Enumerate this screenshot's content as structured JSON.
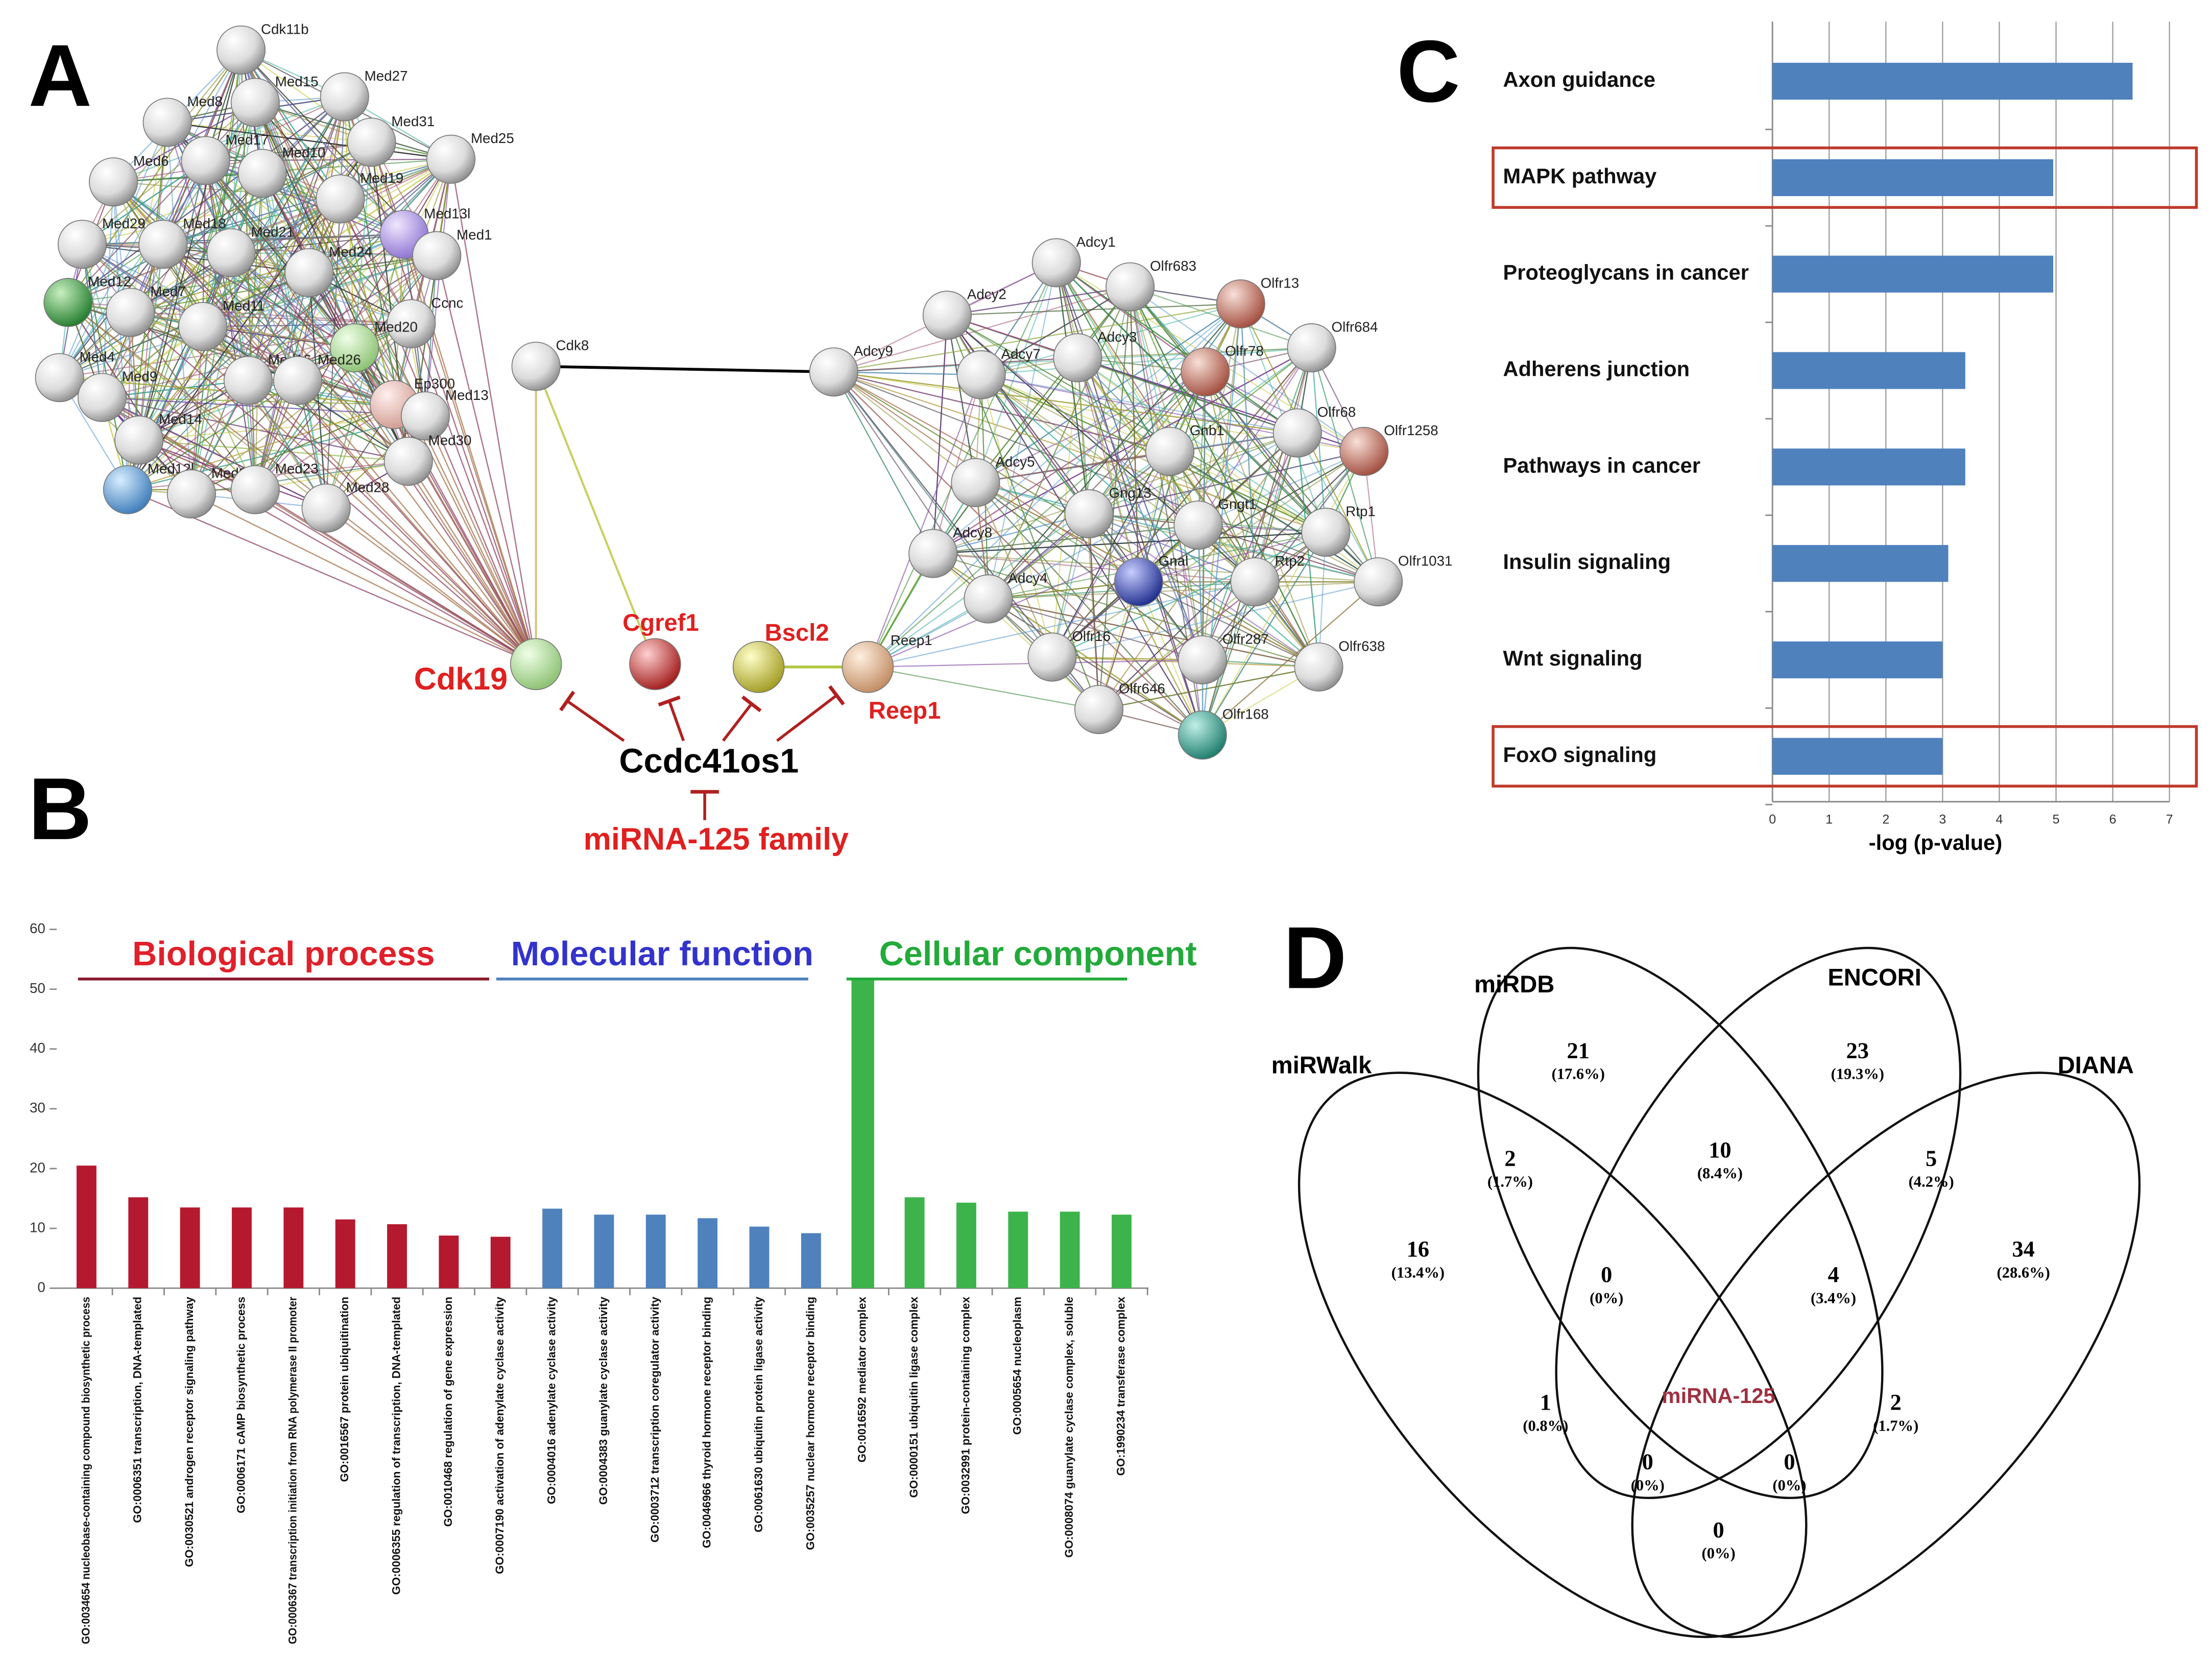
{
  "network": {
    "panel_label": "A",
    "nodes": [
      "Cdk11b",
      "Med27",
      "Med15",
      "Med8",
      "Med31",
      "Med25",
      "Med17",
      "Med10",
      "Med6",
      "Med19",
      "Med13l",
      "Med1",
      "Med29",
      "Med18",
      "Med21",
      "Med24",
      "Med12",
      "Med7",
      "Med11",
      "Ccnc",
      "Med20",
      "Med16",
      "Med26",
      "Ep300",
      "Med13",
      "Med4",
      "Med9",
      "Med14",
      "Med30",
      "Med12l",
      "Med22",
      "Med23",
      "Med28",
      "Cdk8",
      "Adcy1",
      "Olfr683",
      "Olfr13",
      "Adcy2",
      "Olfr684",
      "Adcy9",
      "Adcy7",
      "Adcy3",
      "Olfr78",
      "Gnb1",
      "Olfr68",
      "Olfr1258",
      "Adcy5",
      "Gng13",
      "Gngt1",
      "Rtp1",
      "Adcy8",
      "Gnal",
      "Rtp2",
      "Olfr1031",
      "Adcy4",
      "Olfr16",
      "Olfr287",
      "Olfr638",
      "Olfr646",
      "Olfr168"
    ],
    "targets": [
      "Cdk19",
      "Cgref1",
      "Bscl2",
      "Reep1"
    ],
    "center": "Ccdc41os1",
    "regulator": "miRNA-125 family"
  },
  "chart_data": [
    {
      "type": "bar",
      "panel_label": "B",
      "categories": [
        "GO:0034654 nucleobase-containing compound biosynthetic process",
        "GO:0006351 transcription, DNA-templated",
        "GO:0030521 androgen receptor signaling pathway",
        "GO:0006171 cAMP biosynthetic process",
        "GO:0006367 transcription initiation from RNA polymerase II promoter",
        "GO:0016567 protein ubiquitination",
        "GO:0006355 regulation of transcription, DNA-templated",
        "GO:0010468 regulation of gene expression",
        "GO:0007190 activation of adenylate cyclase activity",
        "GO:0004016 adenylate cyclase activity",
        "GO:0004383 guanylate cyclase activity",
        "GO:0003712 transcription coregulator activity",
        "GO:0046966 thyroid hormone receptor binding",
        "GO:0061630 ubiquitin protein ligase activity",
        "GO:0035257 nuclear hormone receptor binding",
        "GO:0016592 mediator complex",
        "GO:0000151 ubiquitin ligase complex",
        "GO:0032991 protein-containing complex",
        "GO:0005654 nucleoplasm",
        "GO:0008074 guanylate cyclase complex, soluble",
        "GO:1990234 transferase complex"
      ],
      "values": [
        20.5,
        15.2,
        13.5,
        13.5,
        13.5,
        11.5,
        10.7,
        8.8,
        8.6,
        13.3,
        12.3,
        12.3,
        11.7,
        10.3,
        9.2,
        51.5,
        15.2,
        14.3,
        12.8,
        12.8,
        12.3
      ],
      "colors": [
        "#b5192f",
        "#b5192f",
        "#b5192f",
        "#b5192f",
        "#b5192f",
        "#b5192f",
        "#b5192f",
        "#b5192f",
        "#b5192f",
        "#4f81bd",
        "#4f81bd",
        "#4f81bd",
        "#4f81bd",
        "#4f81bd",
        "#4f81bd",
        "#3cb44b",
        "#3cb44b",
        "#3cb44b",
        "#3cb44b",
        "#3cb44b",
        "#3cb44b"
      ],
      "groups": [
        {
          "name": "Biological process",
          "color": "#e0202a",
          "line_color": "#8b1a2b"
        },
        {
          "name": "Molecular function",
          "color": "#3333cc",
          "line_color": "#4f81bd"
        },
        {
          "name": "Cellular component",
          "color": "#22aa3a",
          "line_color": "#22aa3a"
        }
      ],
      "ylim": [
        0,
        60
      ],
      "yticks": [
        0,
        10,
        20,
        30,
        40,
        50,
        60
      ]
    },
    {
      "type": "hbar",
      "panel_label": "C",
      "categories": [
        "Axon guidance",
        "MAPK pathway",
        "Proteoglycans in cancer",
        "Adherens junction",
        "Pathways in cancer",
        "Insulin signaling",
        "Wnt signaling",
        "FoxO signaling"
      ],
      "values": [
        6.35,
        4.95,
        4.95,
        3.4,
        3.4,
        3.1,
        3.0,
        3.0
      ],
      "color": "#4f81bd",
      "xlim": [
        0,
        7
      ],
      "xticks": [
        0,
        1,
        2,
        3,
        4,
        5,
        6,
        7
      ],
      "xlabel": "-log (p-value)",
      "grid": true,
      "highlight": [
        1,
        7
      ],
      "highlight_color": "#c0392b"
    },
    {
      "type": "venn",
      "panel_label": "D",
      "sets": [
        "miRWalk",
        "miRDB",
        "ENCORI",
        "DIANA"
      ],
      "counts": [
        21,
        23,
        2,
        10,
        5,
        16,
        0,
        4,
        34,
        1,
        2,
        0,
        0,
        0
      ],
      "percents": [
        {
          "value": 17.6,
          "label": "(17.6%)"
        },
        {
          "value": 19.3,
          "label": "(19.3%)"
        },
        {
          "value": 1.7,
          "label": "(1.7%)"
        },
        {
          "value": 8.4,
          "label": "(8.4%)"
        },
        {
          "value": 4.2,
          "label": "(4.2%)"
        },
        {
          "value": 13.4,
          "label": "(13.4%)"
        },
        {
          "value": 0,
          "label": "(0%)"
        },
        {
          "value": 3.4,
          "label": "(3.4%)"
        },
        {
          "value": 28.6,
          "label": "(28.6%)"
        },
        {
          "value": 0.8,
          "label": "(0.8%)"
        },
        {
          "value": 1.7,
          "label": "(1.7%)"
        },
        {
          "value": 0,
          "label": "(0%)"
        },
        {
          "value": 0,
          "label": "(0%)"
        },
        {
          "value": 0,
          "label": "(0%)"
        }
      ],
      "center_label": "miRNA-125"
    }
  ]
}
